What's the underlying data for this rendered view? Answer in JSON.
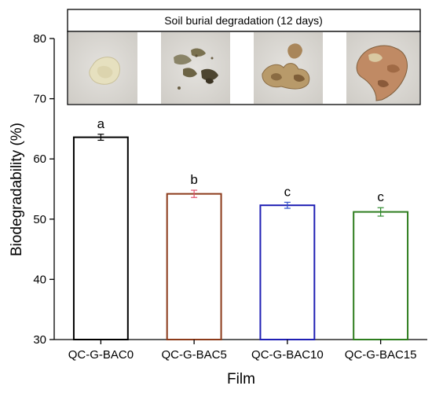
{
  "chart_data": {
    "type": "bar",
    "xlabel": "Film",
    "ylabel": "Biodegradability (%)",
    "ylim": [
      30,
      80
    ],
    "yticks": [
      30,
      40,
      50,
      60,
      70,
      80
    ],
    "categories": [
      "QC-G-BAC0",
      "QC-G-BAC5",
      "QC-G-BAC10",
      "QC-G-BAC15"
    ],
    "values": [
      63.6,
      54.2,
      52.3,
      51.2
    ],
    "errors": [
      0.5,
      0.6,
      0.5,
      0.7
    ],
    "significance_labels": [
      "a",
      "b",
      "c",
      "c"
    ],
    "bar_colors": [
      "#000000",
      "#8b3a1a",
      "#1f1fb4",
      "#2e7d1e"
    ],
    "error_colors": [
      "#000000",
      "#e0506a",
      "#3050c8",
      "#2e8b2e"
    ],
    "grid": false,
    "inset": {
      "title": "Soil burial degradation (12 days)",
      "panel_count": 4,
      "panel_labels": [
        "QC-G-BAC0",
        "QC-G-BAC5",
        "QC-G-BAC10",
        "QC-G-BAC15"
      ]
    }
  }
}
